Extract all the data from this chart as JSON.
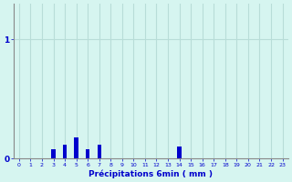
{
  "xlabel": "Précipitations 6min ( mm )",
  "ylabel": "",
  "background_color": "#d6f5f0",
  "bar_color": "#0000cc",
  "grid_color": "#b8ddd8",
  "axis_color": "#888888",
  "text_color": "#0000cc",
  "xlim": [
    -0.5,
    23.5
  ],
  "ylim": [
    0,
    1.3
  ],
  "yticks": [
    0,
    1
  ],
  "xticks": [
    0,
    1,
    2,
    3,
    4,
    5,
    6,
    7,
    8,
    9,
    10,
    11,
    12,
    13,
    14,
    15,
    16,
    17,
    18,
    19,
    20,
    21,
    22,
    23
  ],
  "values": [
    0,
    0,
    0,
    0.08,
    0.12,
    0.18,
    0.08,
    0.12,
    0,
    0,
    0,
    0,
    0,
    0,
    0.1,
    0,
    0,
    0,
    0,
    0,
    0,
    0,
    0,
    0
  ],
  "bar_width": 0.35,
  "figsize": [
    3.2,
    2.0
  ],
  "dpi": 100
}
